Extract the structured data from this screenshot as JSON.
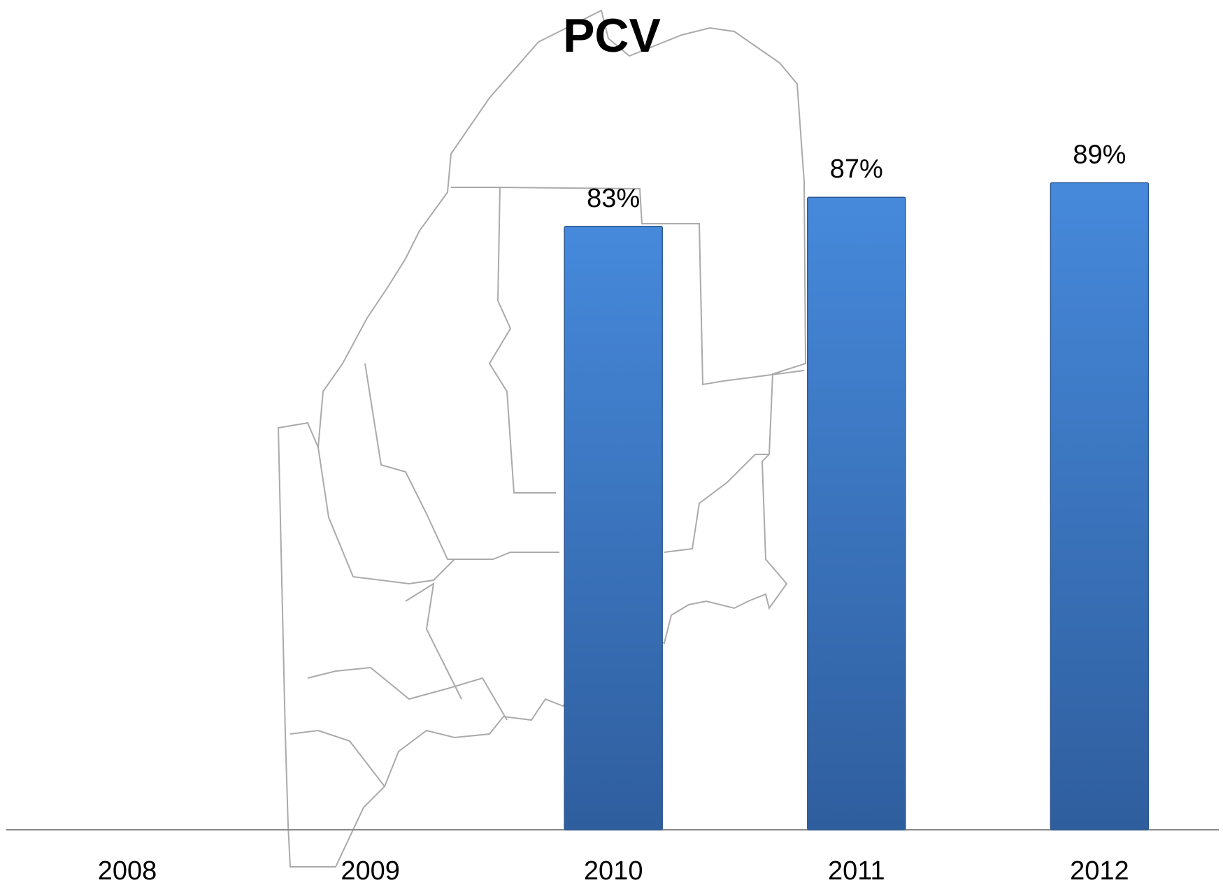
{
  "chart_data": {
    "type": "bar",
    "title": "PCV",
    "categories": [
      "2008",
      "2009",
      "2010",
      "2011",
      "2012"
    ],
    "values": [
      null,
      null,
      83,
      87,
      89
    ],
    "value_labels": [
      null,
      null,
      "83%",
      "87%",
      "89%"
    ],
    "color": "#3b7dd0",
    "ylim": [
      0,
      100
    ]
  }
}
